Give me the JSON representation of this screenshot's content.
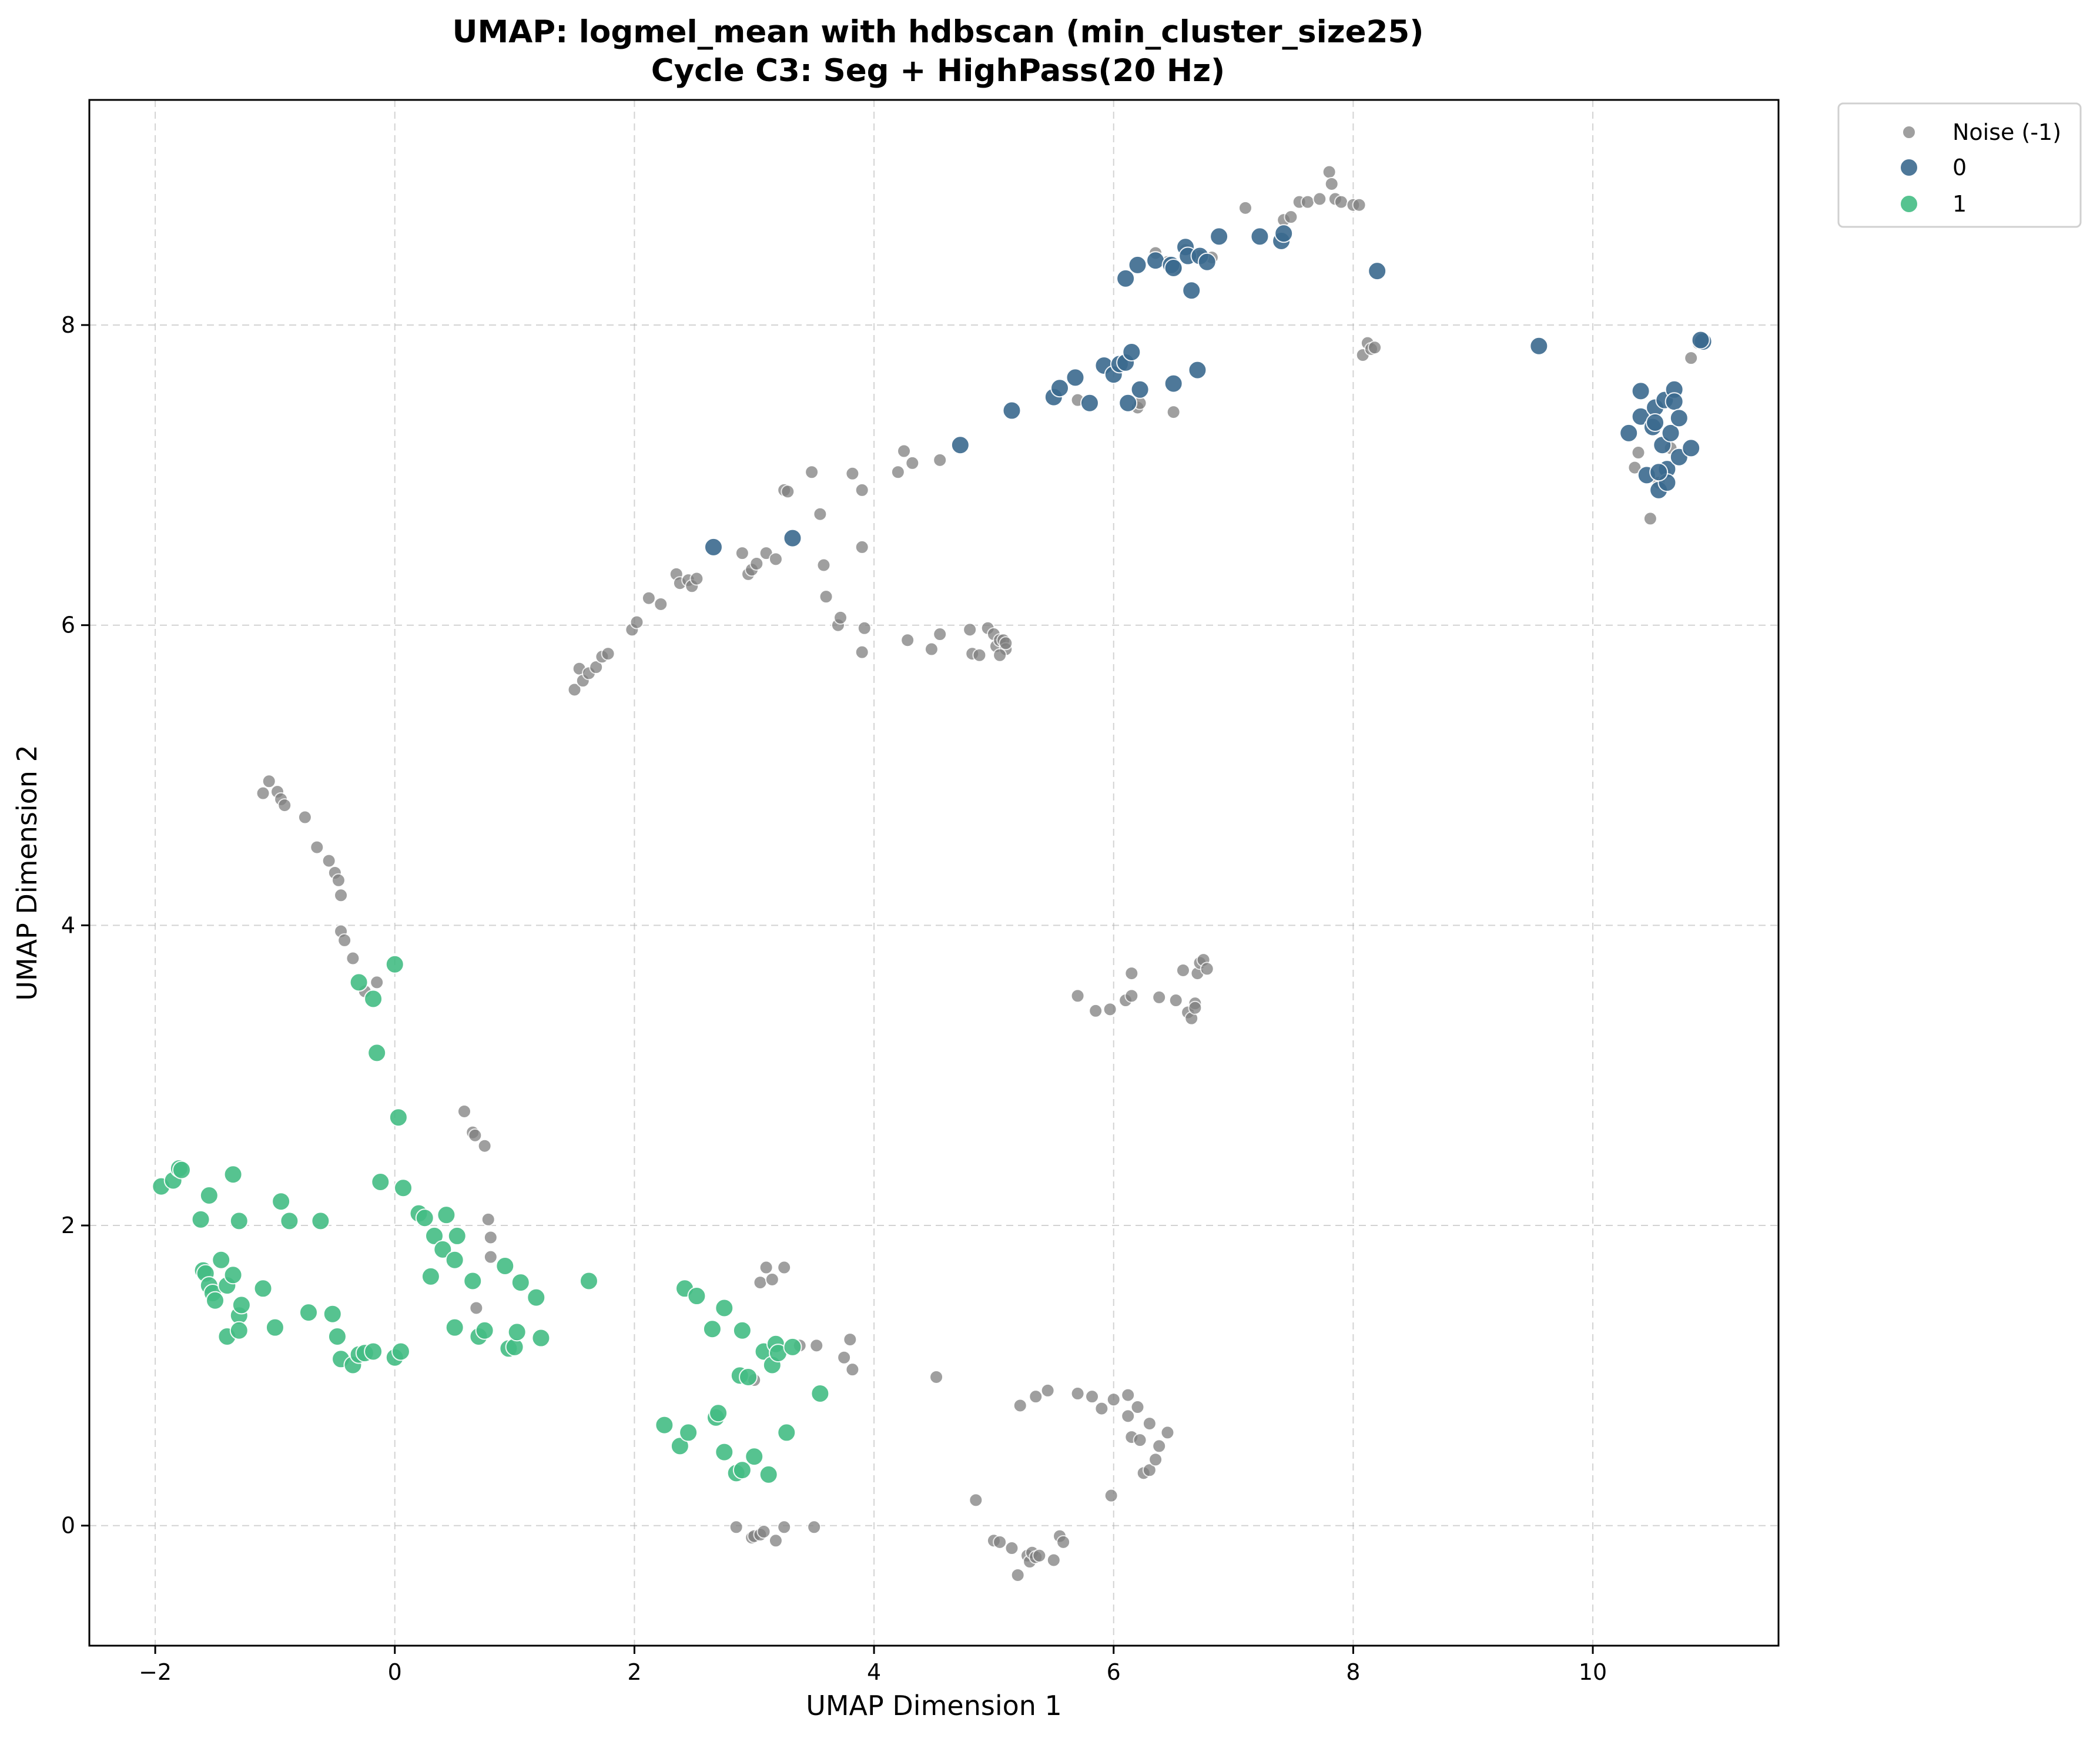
{
  "chart_data": {
    "type": "scatter",
    "title": "UMAP: logmel_mean with hdbscan (min_cluster_size25)",
    "subtitle": "Cycle C3: Seg + HighPass(20 Hz)",
    "xlabel": "UMAP Dimension 1",
    "ylabel": "UMAP Dimension 2",
    "xlim": [
      -2.55,
      11.55
    ],
    "ylim": [
      -0.8,
      9.5
    ],
    "xticks": [
      -2,
      0,
      2,
      4,
      6,
      8,
      10
    ],
    "yticks": [
      0,
      2,
      4,
      6,
      8
    ],
    "grid": true,
    "legend_position": "outside-top-right",
    "series": [
      {
        "name": "Noise (-1)",
        "color": "#808080",
        "points": [
          [
            -1.1,
            4.88
          ],
          [
            -1.05,
            4.96
          ],
          [
            -0.98,
            4.89
          ],
          [
            -0.95,
            4.84
          ],
          [
            -0.92,
            4.8
          ],
          [
            -0.75,
            4.72
          ],
          [
            -0.65,
            4.52
          ],
          [
            -0.55,
            4.43
          ],
          [
            -0.5,
            4.35
          ],
          [
            -0.47,
            4.3
          ],
          [
            -0.45,
            4.2
          ],
          [
            -0.45,
            3.96
          ],
          [
            -0.42,
            3.9
          ],
          [
            -0.35,
            3.78
          ],
          [
            -0.25,
            3.56
          ],
          [
            -0.15,
            3.62
          ],
          [
            0.58,
            2.76
          ],
          [
            0.65,
            2.62
          ],
          [
            0.67,
            2.6
          ],
          [
            0.75,
            2.53
          ],
          [
            0.78,
            2.04
          ],
          [
            0.8,
            1.92
          ],
          [
            0.8,
            1.79
          ],
          [
            0.68,
            1.45
          ],
          [
            1.5,
            5.57
          ],
          [
            1.54,
            5.71
          ],
          [
            1.57,
            5.63
          ],
          [
            1.62,
            5.68
          ],
          [
            1.68,
            5.72
          ],
          [
            1.73,
            5.79
          ],
          [
            1.78,
            5.81
          ],
          [
            1.98,
            5.97
          ],
          [
            2.02,
            6.02
          ],
          [
            2.12,
            6.18
          ],
          [
            2.22,
            6.14
          ],
          [
            2.35,
            6.34
          ],
          [
            2.38,
            6.28
          ],
          [
            2.45,
            6.3
          ],
          [
            2.48,
            6.26
          ],
          [
            2.52,
            6.31
          ],
          [
            2.9,
            6.48
          ],
          [
            2.95,
            6.34
          ],
          [
            2.98,
            6.37
          ],
          [
            3.02,
            6.41
          ],
          [
            3.1,
            6.48
          ],
          [
            3.18,
            6.44
          ],
          [
            3.25,
            6.9
          ],
          [
            3.28,
            6.89
          ],
          [
            3.48,
            7.02
          ],
          [
            3.55,
            6.74
          ],
          [
            3.58,
            6.4
          ],
          [
            3.6,
            6.19
          ],
          [
            3.7,
            6.0
          ],
          [
            3.72,
            6.05
          ],
          [
            3.82,
            7.01
          ],
          [
            3.9,
            6.9
          ],
          [
            3.9,
            6.52
          ],
          [
            3.92,
            5.98
          ],
          [
            3.9,
            5.82
          ],
          [
            4.2,
            7.02
          ],
          [
            4.25,
            7.16
          ],
          [
            4.32,
            7.08
          ],
          [
            4.55,
            7.1
          ],
          [
            4.28,
            5.9
          ],
          [
            4.48,
            5.84
          ],
          [
            4.55,
            5.94
          ],
          [
            4.8,
            5.97
          ],
          [
            4.82,
            5.81
          ],
          [
            4.88,
            5.8
          ],
          [
            4.95,
            5.98
          ],
          [
            5.0,
            5.94
          ],
          [
            5.02,
            5.86
          ],
          [
            5.05,
            5.9
          ],
          [
            5.08,
            5.9
          ],
          [
            5.1,
            5.84
          ],
          [
            5.05,
            5.8
          ],
          [
            5.1,
            5.88
          ],
          [
            5.7,
            7.5
          ],
          [
            6.2,
            7.45
          ],
          [
            6.22,
            7.48
          ],
          [
            6.5,
            7.42
          ],
          [
            6.35,
            8.48
          ],
          [
            6.45,
            8.42
          ],
          [
            6.52,
            8.38
          ],
          [
            6.6,
            8.5
          ],
          [
            6.72,
            8.46
          ],
          [
            6.82,
            8.45
          ],
          [
            7.1,
            8.78
          ],
          [
            7.42,
            8.7
          ],
          [
            7.48,
            8.72
          ],
          [
            7.55,
            8.82
          ],
          [
            7.62,
            8.82
          ],
          [
            7.72,
            8.84
          ],
          [
            7.8,
            9.02
          ],
          [
            7.82,
            8.94
          ],
          [
            7.85,
            8.84
          ],
          [
            7.9,
            8.82
          ],
          [
            8.0,
            8.8
          ],
          [
            8.05,
            8.8
          ],
          [
            8.08,
            7.8
          ],
          [
            8.12,
            7.88
          ],
          [
            8.15,
            7.84
          ],
          [
            8.18,
            7.85
          ],
          [
            10.35,
            7.05
          ],
          [
            10.38,
            7.15
          ],
          [
            10.48,
            6.71
          ],
          [
            10.55,
            6.95
          ],
          [
            10.6,
            7.02
          ],
          [
            10.65,
            7.18
          ],
          [
            10.82,
            7.78
          ],
          [
            10.88,
            7.88
          ],
          [
            5.7,
            3.53
          ],
          [
            5.85,
            3.43
          ],
          [
            5.97,
            3.44
          ],
          [
            6.1,
            3.5
          ],
          [
            6.15,
            3.53
          ],
          [
            6.15,
            3.68
          ],
          [
            6.38,
            3.52
          ],
          [
            6.52,
            3.5
          ],
          [
            6.58,
            3.7
          ],
          [
            6.62,
            3.42
          ],
          [
            6.65,
            3.38
          ],
          [
            6.68,
            3.48
          ],
          [
            6.68,
            3.45
          ],
          [
            6.7,
            3.68
          ],
          [
            6.72,
            3.75
          ],
          [
            6.75,
            3.77
          ],
          [
            6.78,
            3.71
          ],
          [
            2.85,
            -0.01
          ],
          [
            2.98,
            -0.08
          ],
          [
            3.0,
            -0.07
          ],
          [
            3.05,
            -0.06
          ],
          [
            3.08,
            -0.04
          ],
          [
            3.18,
            -0.1
          ],
          [
            3.25,
            -0.01
          ],
          [
            3.5,
            -0.01
          ],
          [
            3.0,
            0.97
          ],
          [
            3.05,
            1.62
          ],
          [
            3.1,
            1.72
          ],
          [
            3.15,
            1.64
          ],
          [
            3.25,
            1.72
          ],
          [
            3.38,
            1.2
          ],
          [
            3.52,
            1.2
          ],
          [
            3.75,
            1.12
          ],
          [
            3.8,
            1.24
          ],
          [
            3.82,
            1.04
          ],
          [
            4.52,
            0.99
          ],
          [
            4.85,
            0.17
          ],
          [
            5.0,
            -0.1
          ],
          [
            5.05,
            -0.11
          ],
          [
            5.15,
            -0.15
          ],
          [
            5.2,
            -0.33
          ],
          [
            5.22,
            0.8
          ],
          [
            5.28,
            -0.2
          ],
          [
            5.3,
            -0.24
          ],
          [
            5.32,
            -0.18
          ],
          [
            5.35,
            -0.21
          ],
          [
            5.35,
            0.86
          ],
          [
            5.38,
            -0.2
          ],
          [
            5.45,
            0.9
          ],
          [
            5.5,
            -0.23
          ],
          [
            5.55,
            -0.07
          ],
          [
            5.58,
            -0.11
          ],
          [
            5.7,
            0.88
          ],
          [
            5.82,
            0.86
          ],
          [
            5.9,
            0.78
          ],
          [
            5.98,
            0.2
          ],
          [
            6.0,
            0.84
          ],
          [
            6.12,
            0.73
          ],
          [
            6.12,
            0.87
          ],
          [
            6.15,
            0.59
          ],
          [
            6.2,
            0.79
          ],
          [
            6.22,
            0.57
          ],
          [
            6.25,
            0.35
          ],
          [
            6.3,
            0.37
          ],
          [
            6.3,
            0.68
          ],
          [
            6.35,
            0.44
          ],
          [
            6.38,
            0.53
          ],
          [
            6.45,
            0.62
          ]
        ]
      },
      {
        "name": "0",
        "color": "#3b6a8f",
        "points": [
          [
            2.66,
            6.52
          ],
          [
            3.32,
            6.58
          ],
          [
            4.72,
            7.2
          ],
          [
            5.15,
            7.43
          ],
          [
            5.5,
            7.52
          ],
          [
            5.55,
            7.58
          ],
          [
            5.68,
            7.65
          ],
          [
            5.8,
            7.48
          ],
          [
            5.92,
            7.73
          ],
          [
            6.0,
            7.67
          ],
          [
            6.05,
            7.74
          ],
          [
            6.1,
            7.75
          ],
          [
            6.15,
            7.82
          ],
          [
            6.12,
            7.48
          ],
          [
            6.22,
            7.57
          ],
          [
            6.5,
            7.61
          ],
          [
            6.7,
            7.7
          ],
          [
            6.1,
            8.31
          ],
          [
            6.2,
            8.4
          ],
          [
            6.35,
            8.43
          ],
          [
            6.48,
            8.4
          ],
          [
            6.5,
            8.38
          ],
          [
            6.6,
            8.52
          ],
          [
            6.62,
            8.46
          ],
          [
            6.65,
            8.23
          ],
          [
            6.72,
            8.46
          ],
          [
            6.78,
            8.42
          ],
          [
            6.88,
            8.59
          ],
          [
            7.22,
            8.59
          ],
          [
            7.4,
            8.56
          ],
          [
            7.42,
            8.61
          ],
          [
            8.2,
            8.36
          ],
          [
            9.55,
            7.86
          ],
          [
            10.3,
            7.28
          ],
          [
            10.4,
            7.56
          ],
          [
            10.4,
            7.39
          ],
          [
            10.45,
            7.0
          ],
          [
            10.5,
            7.32
          ],
          [
            10.52,
            7.45
          ],
          [
            10.55,
            6.9
          ],
          [
            10.58,
            7.2
          ],
          [
            10.6,
            7.5
          ],
          [
            10.62,
            7.04
          ],
          [
            10.62,
            6.95
          ],
          [
            10.65,
            7.28
          ],
          [
            10.68,
            7.57
          ],
          [
            10.68,
            7.49
          ],
          [
            10.72,
            7.12
          ],
          [
            10.72,
            7.38
          ],
          [
            10.82,
            7.18
          ],
          [
            10.92,
            7.89
          ],
          [
            10.9,
            7.9
          ],
          [
            10.55,
            7.02
          ],
          [
            10.52,
            7.35
          ]
        ]
      },
      {
        "name": "1",
        "color": "#44bd84",
        "points": [
          [
            -1.95,
            2.26
          ],
          [
            -1.85,
            2.3
          ],
          [
            -1.8,
            2.38
          ],
          [
            -1.78,
            2.37
          ],
          [
            -1.62,
            2.04
          ],
          [
            -1.6,
            1.7
          ],
          [
            -1.58,
            1.68
          ],
          [
            -1.55,
            2.2
          ],
          [
            -1.55,
            1.6
          ],
          [
            -1.52,
            1.55
          ],
          [
            -1.5,
            1.5
          ],
          [
            -1.45,
            1.77
          ],
          [
            -1.4,
            1.6
          ],
          [
            -1.4,
            1.26
          ],
          [
            -1.35,
            1.67
          ],
          [
            -1.35,
            2.34
          ],
          [
            -1.3,
            1.4
          ],
          [
            -1.3,
            1.3
          ],
          [
            -1.28,
            1.47
          ],
          [
            -1.3,
            2.03
          ],
          [
            -1.1,
            1.58
          ],
          [
            -1.0,
            1.32
          ],
          [
            -0.95,
            2.16
          ],
          [
            -0.88,
            2.03
          ],
          [
            -0.72,
            1.42
          ],
          [
            -0.62,
            2.03
          ],
          [
            -0.52,
            1.41
          ],
          [
            -0.48,
            1.26
          ],
          [
            -0.45,
            1.11
          ],
          [
            -0.35,
            1.07
          ],
          [
            -0.3,
            1.14
          ],
          [
            -0.25,
            1.15
          ],
          [
            -0.18,
            1.16
          ],
          [
            -0.12,
            2.29
          ],
          [
            0.0,
            1.12
          ],
          [
            0.05,
            1.16
          ],
          [
            -0.3,
            3.62
          ],
          [
            -0.18,
            3.51
          ],
          [
            0.0,
            3.74
          ],
          [
            -0.15,
            3.15
          ],
          [
            0.03,
            2.72
          ],
          [
            0.07,
            2.25
          ],
          [
            0.2,
            2.08
          ],
          [
            0.25,
            2.05
          ],
          [
            0.3,
            1.66
          ],
          [
            0.33,
            1.93
          ],
          [
            0.4,
            1.84
          ],
          [
            0.43,
            2.07
          ],
          [
            0.5,
            1.77
          ],
          [
            0.52,
            1.93
          ],
          [
            0.5,
            1.32
          ],
          [
            0.65,
            1.63
          ],
          [
            0.7,
            1.26
          ],
          [
            0.75,
            1.3
          ],
          [
            0.92,
            1.73
          ],
          [
            0.95,
            1.18
          ],
          [
            1.0,
            1.19
          ],
          [
            1.02,
            1.29
          ],
          [
            1.05,
            1.62
          ],
          [
            1.18,
            1.52
          ],
          [
            1.22,
            1.25
          ],
          [
            1.62,
            1.63
          ],
          [
            2.25,
            0.67
          ],
          [
            2.38,
            0.53
          ],
          [
            2.42,
            1.58
          ],
          [
            2.45,
            0.62
          ],
          [
            2.52,
            1.53
          ],
          [
            2.65,
            1.31
          ],
          [
            2.68,
            0.72
          ],
          [
            2.7,
            0.75
          ],
          [
            2.75,
            1.45
          ],
          [
            2.75,
            0.49
          ],
          [
            2.85,
            0.35
          ],
          [
            2.88,
            1.0
          ],
          [
            2.9,
            1.3
          ],
          [
            2.9,
            0.37
          ],
          [
            2.95,
            0.99
          ],
          [
            3.0,
            0.46
          ],
          [
            3.08,
            1.16
          ],
          [
            3.12,
            0.34
          ],
          [
            3.15,
            1.07
          ],
          [
            3.18,
            1.21
          ],
          [
            3.2,
            1.15
          ],
          [
            3.27,
            0.62
          ],
          [
            3.32,
            1.19
          ],
          [
            3.55,
            0.88
          ]
        ]
      }
    ]
  }
}
